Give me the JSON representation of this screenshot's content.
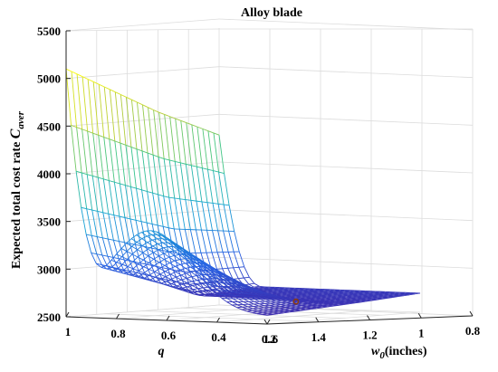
{
  "chart_data": {
    "type": "surface",
    "title": "Alloy blade",
    "zlabel_main": "Expected total cost rate ",
    "zlabel_sym": "C",
    "zlabel_sub": "aver",
    "xlabel": "q",
    "ylabel_main": "(inches)",
    "ylabel_sym": "w",
    "ylabel_sub": "0",
    "zlim": [
      2500,
      5500
    ],
    "xlim": [
      0.2,
      1
    ],
    "ylim": [
      0.8,
      1.6
    ],
    "z_ticks": [
      "2500",
      "3000",
      "3500",
      "4000",
      "4500",
      "5000",
      "5500"
    ],
    "x_ticks": [
      "1",
      "0.8",
      "0.6",
      "0.4",
      "0.2"
    ],
    "y_ticks": [
      "1.6",
      "1.4",
      "1.2",
      "1",
      "0.8"
    ],
    "grid": true,
    "colormap": "parula",
    "min_marker_color": "#8B3A0F",
    "min_value": 2580
  }
}
